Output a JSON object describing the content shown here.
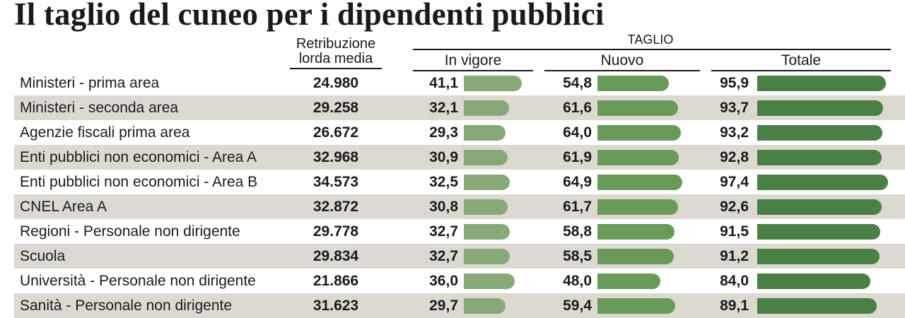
{
  "title": "Il taglio del cuneo per i dipendenti pubblici",
  "headers": {
    "retribuzione_line1": "Retribuzione",
    "retribuzione_line2": "lorda media",
    "taglio": "TAGLIO",
    "in_vigore": "In vigore",
    "nuovo": "Nuovo",
    "totale": "Totale"
  },
  "colors": {
    "in_vigore": "#88a87a",
    "nuovo": "#6a9a5a",
    "totale": "#4a7f45",
    "row_shade": "#dcdad0"
  },
  "rows": [
    {
      "label": "Ministeri - prima area",
      "retribuzione": "24.980",
      "in_vigore": "41,1",
      "nuovo": "54,8",
      "totale": "95,9"
    },
    {
      "label": "Ministeri - seconda area",
      "retribuzione": "29.258",
      "in_vigore": "32,1",
      "nuovo": "61,6",
      "totale": "93,7"
    },
    {
      "label": "Agenzie fiscali prima area",
      "retribuzione": "26.672",
      "in_vigore": "29,3",
      "nuovo": "64,0",
      "totale": "93,2"
    },
    {
      "label": "Enti pubblici non economici - Area A",
      "retribuzione": "32.968",
      "in_vigore": "30,9",
      "nuovo": "61,9",
      "totale": "92,8"
    },
    {
      "label": "Enti pubblici non economici - Area B",
      "retribuzione": "34.573",
      "in_vigore": "32,5",
      "nuovo": "64,9",
      "totale": "97,4"
    },
    {
      "label": "CNEL Area A",
      "retribuzione": "32.872",
      "in_vigore": "30,8",
      "nuovo": "61,7",
      "totale": "92,6"
    },
    {
      "label": "Regioni - Personale non dirigente",
      "retribuzione": "29.778",
      "in_vigore": "32,7",
      "nuovo": "58,8",
      "totale": "91,5"
    },
    {
      "label": "Scuola",
      "retribuzione": "29.834",
      "in_vigore": "32,7",
      "nuovo": "58,5",
      "totale": "91,2"
    },
    {
      "label": "Università - Personale non dirigente",
      "retribuzione": "21.866",
      "in_vigore": "36,0",
      "nuovo": "48,0",
      "totale": "84,0"
    },
    {
      "label": "Sanità - Personale non dirigente",
      "retribuzione": "31.623",
      "in_vigore": "29,7",
      "nuovo": "59,4",
      "totale": "89,1"
    }
  ],
  "chart_data": {
    "type": "bar",
    "title": "Il taglio del cuneo per i dipendenti pubblici",
    "categories": [
      "Ministeri - prima area",
      "Ministeri - seconda area",
      "Agenzie fiscali prima area",
      "Enti pubblici non economici - Area A",
      "Enti pubblici non economici - Area B",
      "CNEL Area A",
      "Regioni - Personale non dirigente",
      "Scuola",
      "Università - Personale non dirigente",
      "Sanità - Personale non dirigente"
    ],
    "series": [
      {
        "name": "In vigore",
        "values": [
          41.1,
          32.1,
          29.3,
          30.9,
          32.5,
          30.8,
          32.7,
          32.7,
          36.0,
          29.7
        ]
      },
      {
        "name": "Nuovo",
        "values": [
          54.8,
          61.6,
          64.0,
          61.9,
          64.9,
          61.7,
          58.8,
          58.5,
          48.0,
          59.4
        ]
      },
      {
        "name": "Totale",
        "values": [
          95.9,
          93.7,
          93.2,
          92.8,
          97.4,
          92.6,
          91.5,
          91.2,
          84.0,
          89.1
        ]
      }
    ],
    "retribuzione_lorda_media": [
      24980,
      29258,
      26672,
      32968,
      34573,
      32872,
      29778,
      29834,
      21866,
      31623
    ]
  }
}
